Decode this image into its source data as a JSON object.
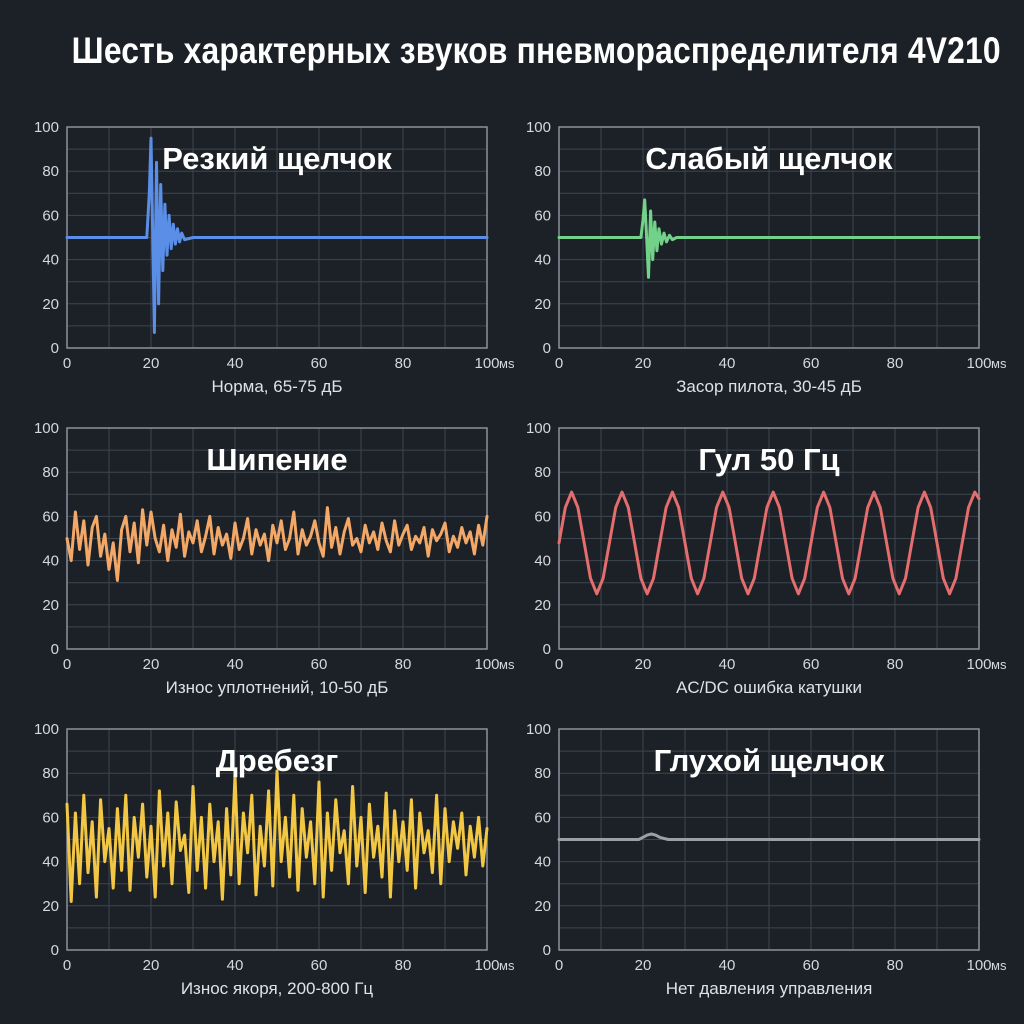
{
  "title": "Шесть характерных звуков пневмораспределителя 4V210",
  "chart_data": [
    {
      "type": "line",
      "title": "Резкий щелчок",
      "xlabel": "Норма, 65-75 дБ",
      "x_unit": "ms",
      "xlim": [
        0,
        100
      ],
      "ylim": [
        0,
        100
      ],
      "xticks": [
        0,
        20,
        40,
        60,
        80,
        100
      ],
      "yticks": [
        0,
        20,
        40,
        60,
        80,
        100
      ],
      "grid": true,
      "color": "#5b8ee6",
      "series": [
        {
          "x": [
            0,
            19,
            19.6,
            20,
            20.4,
            20.8,
            21.3,
            21.8,
            22.3,
            22.8,
            23.3,
            23.8,
            24.3,
            24.8,
            25.3,
            25.8,
            26.3,
            26.8,
            27.3,
            28,
            30,
            100
          ],
          "y": [
            50,
            50,
            70,
            95,
            52,
            7,
            84,
            20,
            74,
            35,
            65,
            42,
            60,
            45,
            56,
            47,
            54,
            48,
            52,
            49,
            50,
            50
          ]
        }
      ]
    },
    {
      "type": "line",
      "title": "Слабый щелчок",
      "xlabel": "Засор пилота, 30-45 дБ",
      "x_unit": "ms",
      "xlim": [
        0,
        100
      ],
      "ylim": [
        0,
        100
      ],
      "xticks": [
        0,
        20,
        40,
        60,
        80,
        100
      ],
      "yticks": [
        0,
        20,
        40,
        60,
        80,
        100
      ],
      "grid": true,
      "color": "#72d28a",
      "series": [
        {
          "x": [
            0,
            19.5,
            20,
            20.4,
            20.8,
            21.3,
            21.8,
            22.3,
            22.8,
            23.3,
            23.8,
            24.4,
            25,
            25.6,
            26.3,
            27,
            28,
            100
          ],
          "y": [
            50,
            50,
            58,
            67,
            52,
            32,
            62,
            40,
            57,
            44,
            54,
            47,
            52,
            48,
            51,
            49,
            50,
            50
          ]
        }
      ]
    },
    {
      "type": "line",
      "title": "Шипение",
      "xlabel": "Износ уплотнений, 10-50 дБ",
      "x_unit": "ms",
      "xlim": [
        0,
        100
      ],
      "ylim": [
        0,
        100
      ],
      "xticks": [
        0,
        20,
        40,
        60,
        80,
        100
      ],
      "yticks": [
        0,
        20,
        40,
        60,
        80,
        100
      ],
      "grid": true,
      "color": "#f3a867",
      "series": [
        {
          "x": [
            0,
            1,
            2,
            3,
            4,
            5,
            6,
            7,
            8,
            9,
            10,
            11,
            12,
            13,
            14,
            15,
            16,
            17,
            18,
            19,
            20,
            21,
            22,
            23,
            24,
            25,
            26,
            27,
            28,
            29,
            30,
            31,
            32,
            33,
            34,
            35,
            36,
            37,
            38,
            39,
            40,
            41,
            42,
            43,
            44,
            45,
            46,
            47,
            48,
            49,
            50,
            51,
            52,
            53,
            54,
            55,
            56,
            57,
            58,
            59,
            60,
            61,
            62,
            63,
            64,
            65,
            66,
            67,
            68,
            69,
            70,
            71,
            72,
            73,
            74,
            75,
            76,
            77,
            78,
            79,
            80,
            81,
            82,
            83,
            84,
            85,
            86,
            87,
            88,
            89,
            90,
            91,
            92,
            93,
            94,
            95,
            96,
            97,
            98,
            99,
            100
          ],
          "y": [
            50,
            40,
            62,
            45,
            58,
            38,
            55,
            60,
            42,
            52,
            36,
            48,
            31,
            54,
            60,
            44,
            57,
            39,
            63,
            47,
            62,
            50,
            44,
            56,
            40,
            54,
            46,
            61,
            42,
            53,
            48,
            58,
            44,
            51,
            60,
            43,
            55,
            47,
            52,
            41,
            57,
            45,
            50,
            59,
            43,
            54,
            47,
            52,
            40,
            56,
            48,
            58,
            45,
            50,
            62,
            43,
            54,
            47,
            51,
            58,
            48,
            42,
            64,
            46,
            55,
            43,
            53,
            59,
            47,
            50,
            44,
            56,
            48,
            53,
            45,
            57,
            49,
            44,
            58,
            47,
            52,
            56,
            45,
            51,
            48,
            55,
            42,
            54,
            49,
            52,
            57,
            44,
            51,
            46,
            55,
            48,
            53,
            43,
            56,
            47,
            60
          ]
        }
      ]
    },
    {
      "type": "line",
      "title": "Гул 50 Гц",
      "xlabel": "AC/DC ошибка катушки",
      "x_unit": "ms",
      "xlim": [
        0,
        100
      ],
      "ylim": [
        0,
        100
      ],
      "xticks": [
        0,
        20,
        40,
        60,
        80,
        100
      ],
      "yticks": [
        0,
        20,
        40,
        60,
        80,
        100
      ],
      "grid": true,
      "color": "#e46d6d",
      "series": [
        {
          "x": [
            0,
            1.5,
            3,
            4.5,
            6,
            7.5,
            9,
            10.5,
            12,
            13.5,
            15,
            16.5,
            18,
            19.5,
            21,
            22.5,
            24,
            25.5,
            27,
            28.5,
            30,
            31.5,
            33,
            34.5,
            36,
            37.5,
            39,
            40.5,
            42,
            43.5,
            45,
            46.5,
            48,
            49.5,
            51,
            52.5,
            54,
            55.5,
            57,
            58.5,
            60,
            61.5,
            63,
            64.5,
            66,
            67.5,
            69,
            70.5,
            72,
            73.5,
            75,
            76.5,
            78,
            79.5,
            81,
            82.5,
            84,
            85.5,
            87,
            88.5,
            90,
            91.5,
            93,
            94.5,
            96,
            97.5,
            99,
            100
          ],
          "y": [
            48,
            64,
            71,
            64,
            48,
            32,
            25,
            32,
            48,
            64,
            71,
            64,
            48,
            32,
            25,
            32,
            48,
            64,
            71,
            64,
            48,
            32,
            25,
            32,
            48,
            64,
            71,
            64,
            48,
            32,
            25,
            32,
            48,
            64,
            71,
            64,
            48,
            32,
            25,
            32,
            48,
            64,
            71,
            64,
            48,
            32,
            25,
            32,
            48,
            64,
            71,
            64,
            48,
            32,
            25,
            32,
            48,
            64,
            71,
            64,
            48,
            32,
            25,
            32,
            48,
            64,
            71,
            68
          ]
        }
      ]
    },
    {
      "type": "line",
      "title": "Дребезг",
      "xlabel": "Износ якоря, 200-800 Гц",
      "x_unit": "ms",
      "xlim": [
        0,
        100
      ],
      "ylim": [
        0,
        100
      ],
      "xticks": [
        0,
        20,
        40,
        60,
        80,
        100
      ],
      "yticks": [
        0,
        20,
        40,
        60,
        80,
        100
      ],
      "grid": true,
      "color": "#f2c744",
      "series": [
        {
          "x": [
            0,
            1,
            2,
            3,
            4,
            5,
            6,
            7,
            8,
            9,
            10,
            11,
            12,
            13,
            14,
            15,
            16,
            17,
            18,
            19,
            20,
            21,
            22,
            23,
            24,
            25,
            26,
            27,
            28,
            29,
            30,
            31,
            32,
            33,
            34,
            35,
            36,
            37,
            38,
            39,
            40,
            41,
            42,
            43,
            44,
            45,
            46,
            47,
            48,
            49,
            50,
            51,
            52,
            53,
            54,
            55,
            56,
            57,
            58,
            59,
            60,
            61,
            62,
            63,
            64,
            65,
            66,
            67,
            68,
            69,
            70,
            71,
            72,
            73,
            74,
            75,
            76,
            77,
            78,
            79,
            80,
            81,
            82,
            83,
            84,
            85,
            86,
            87,
            88,
            89,
            90,
            91,
            92,
            93,
            94,
            95,
            96,
            97,
            98,
            99,
            100
          ],
          "y": [
            66,
            22,
            62,
            30,
            70,
            35,
            58,
            24,
            68,
            40,
            55,
            28,
            64,
            36,
            70,
            27,
            60,
            42,
            66,
            33,
            56,
            24,
            72,
            38,
            62,
            30,
            67,
            45,
            52,
            26,
            74,
            36,
            60,
            28,
            66,
            40,
            58,
            23,
            64,
            34,
            79,
            30,
            62,
            44,
            70,
            25,
            56,
            38,
            72,
            29,
            81,
            40,
            60,
            33,
            70,
            27,
            64,
            42,
            58,
            30,
            76,
            24,
            62,
            36,
            68,
            44,
            54,
            30,
            74,
            38,
            60,
            26,
            66,
            42,
            56,
            33,
            71,
            24,
            63,
            40,
            58,
            36,
            68,
            28,
            62,
            44,
            54,
            35,
            70,
            30,
            64,
            40,
            58,
            46,
            62,
            34,
            56,
            42,
            60,
            38,
            55
          ]
        }
      ]
    },
    {
      "type": "line",
      "title": "Глухой щелчок",
      "xlabel": "Нет давления управления",
      "x_unit": "ms",
      "xlim": [
        0,
        100
      ],
      "ylim": [
        0,
        100
      ],
      "xticks": [
        0,
        20,
        40,
        60,
        80,
        100
      ],
      "yticks": [
        0,
        20,
        40,
        60,
        80,
        100
      ],
      "grid": true,
      "color": "#9aa0a6",
      "series": [
        {
          "x": [
            0,
            19,
            20,
            21,
            22,
            23,
            24,
            25,
            26,
            100
          ],
          "y": [
            50,
            50,
            51,
            52,
            52.5,
            52,
            51,
            50.5,
            50,
            50
          ]
        }
      ]
    }
  ]
}
